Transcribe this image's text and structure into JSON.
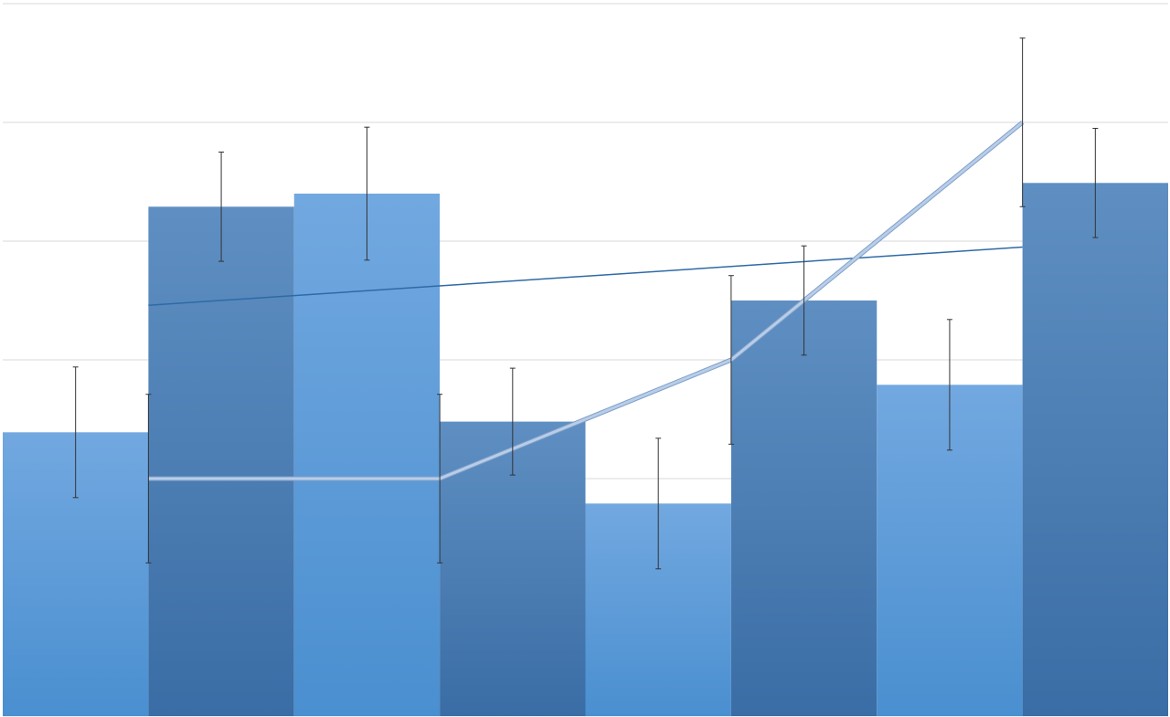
{
  "chart_data": {
    "type": "bar",
    "title": "",
    "xlabel": "",
    "ylabel": "",
    "ylim": [
      0,
      6
    ],
    "grid": true,
    "legend": "none",
    "x_range": [
      0,
      8
    ],
    "bars": {
      "values": [
        2.39,
        4.29,
        4.4,
        2.48,
        1.79,
        3.5,
        2.79,
        4.49
      ],
      "errors": [
        0.55,
        0.46,
        0.56,
        0.45,
        0.55,
        0.46,
        0.55,
        0.46
      ],
      "colors_light": [
        "#72a8e0",
        "#4a8fd0"
      ],
      "colors_dark": [
        "#5f8fc2",
        "#3a6da5"
      ]
    },
    "line": {
      "x": [
        1,
        3,
        5,
        7
      ],
      "values": [
        2,
        2,
        3,
        5
      ],
      "errors": [
        0.71,
        0.71,
        0.71,
        0.71
      ],
      "color": "#b8cde8"
    },
    "trendline": {
      "x": [
        1,
        7
      ],
      "values": [
        3.46,
        3.95
      ],
      "color": "#2e6aa6"
    }
  }
}
